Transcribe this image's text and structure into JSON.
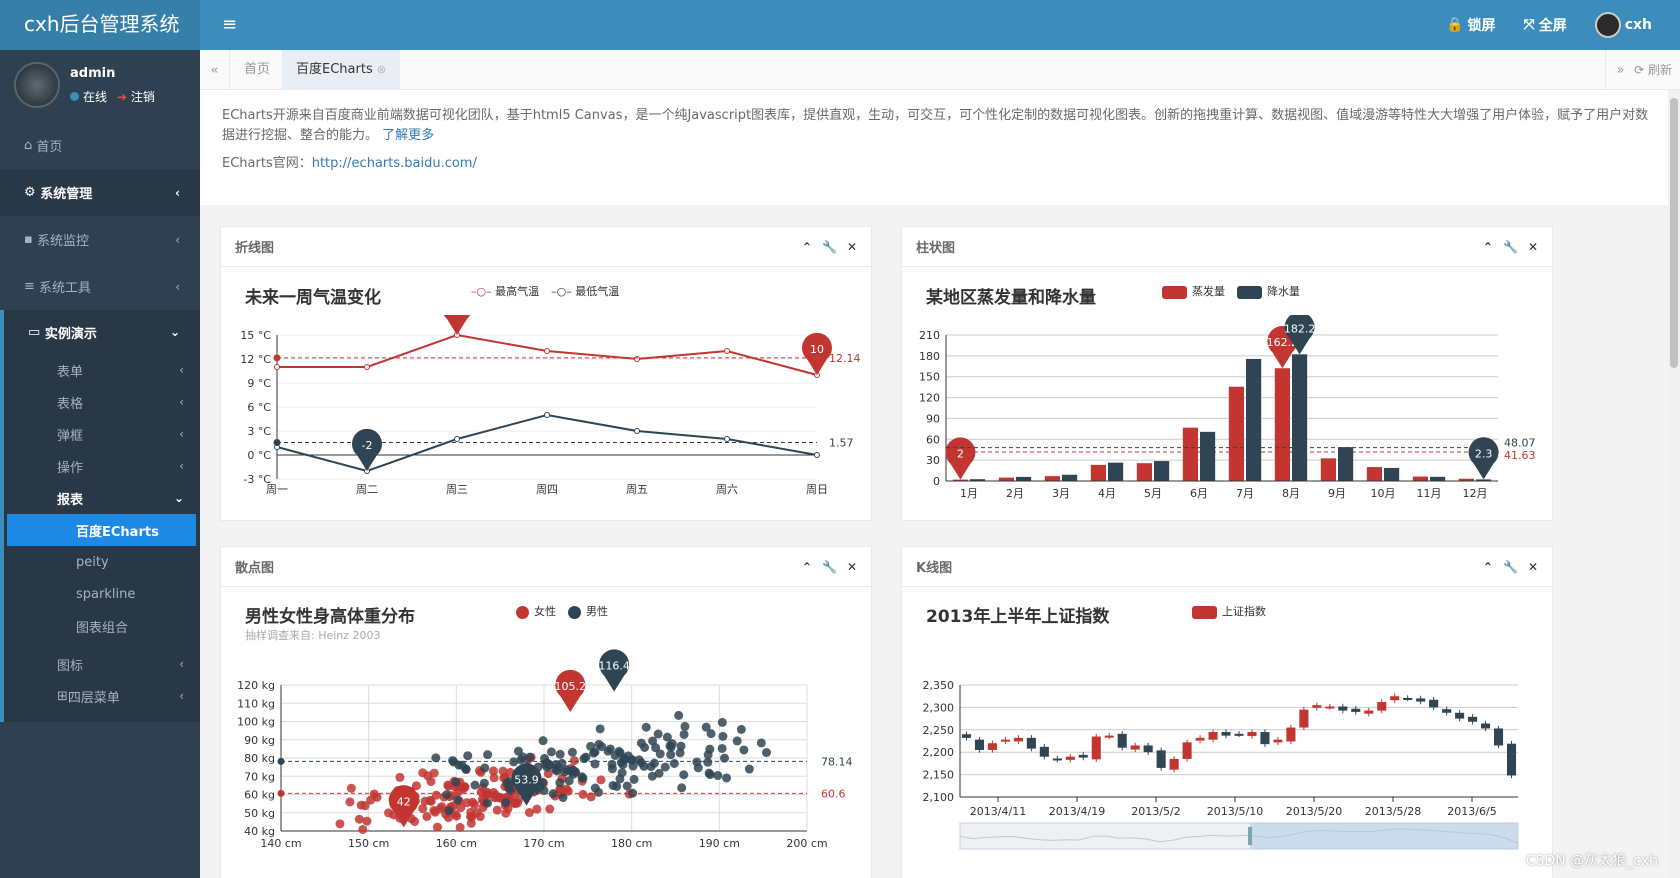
{
  "app": {
    "title": "cxh后台管理系统",
    "menu_toggle": "≡"
  },
  "topbar": {
    "lock": "锁屏",
    "fullscreen": "全屏",
    "user": "cxh"
  },
  "user": {
    "name": "admin",
    "online": "在线",
    "logout": "注销"
  },
  "sidebar": {
    "home": "首页",
    "system": "系统管理",
    "monitor": "系统监控",
    "tools": "系统工具",
    "demo": "实例演示",
    "demo_items": [
      "表单",
      "表格",
      "弹框",
      "操作"
    ],
    "report": "报表",
    "report_items": [
      "百度ECharts",
      "peity",
      "sparkline",
      "图表组合"
    ],
    "icons": "图标",
    "multi": "四层菜单"
  },
  "tabs": {
    "home": "首页",
    "echarts": "百度ECharts",
    "refresh": "刷新"
  },
  "intro": {
    "text": "ECharts开源来自百度商业前端数据可视化团队，基于html5 Canvas，是一个纯Javascript图表库，提供直观，生动，可交互，可个性化定制的数据可视化图表。创新的拖拽重计算、数据视图、值域漫游等特性大大增强了用户体验，赋予了用户对数据进行挖掘、整合的能力。",
    "more": "了解更多",
    "site_label": "ECharts官网：",
    "site_url": "http://echarts.baidu.com/"
  },
  "panels": {
    "line": "折线图",
    "bar": "柱状图",
    "scatter": "散点图",
    "kline": "K线图"
  },
  "colors": {
    "red": "#c23531",
    "dark": "#2f4554",
    "blue": "#1e88e5",
    "topbar": "#3c8dbc",
    "sidebar": "#2f4050"
  },
  "chart_data": [
    {
      "type": "line",
      "title": "未来一周气温变化",
      "categories": [
        "周一",
        "周二",
        "周三",
        "周四",
        "周五",
        "周六",
        "周日"
      ],
      "series": [
        {
          "name": "最高气温",
          "values": [
            11,
            11,
            15,
            13,
            12,
            13,
            10
          ],
          "max_label": "15",
          "min_label": "10",
          "avg": "12.14"
        },
        {
          "name": "最低气温",
          "values": [
            1,
            -2,
            2,
            5,
            3,
            2,
            0
          ],
          "min_label": "-2",
          "avg": "1.57"
        }
      ],
      "y_ticks": [
        "15 °C",
        "12 °C",
        "9 °C",
        "6 °C",
        "3 °C",
        "0 °C",
        "-3 °C"
      ],
      "ylim": [
        -3,
        15
      ]
    },
    {
      "type": "bar",
      "title": "某地区蒸发量和降水量",
      "categories": [
        "1月",
        "2月",
        "3月",
        "4月",
        "5月",
        "6月",
        "7月",
        "8月",
        "9月",
        "10月",
        "11月",
        "12月"
      ],
      "series": [
        {
          "name": "蒸发量",
          "values": [
            2,
            4.9,
            7,
            23.2,
            25.6,
            76.7,
            135.6,
            162.2,
            32.6,
            20,
            6.4,
            3.3
          ],
          "max_label": "162.2",
          "min_label": "2",
          "avg": "41.63"
        },
        {
          "name": "降水量",
          "values": [
            2.6,
            5.9,
            9,
            26.4,
            28.7,
            70.7,
            175.6,
            182.2,
            48.7,
            18.8,
            6,
            2.3
          ],
          "max_label": "182.2",
          "min_label": "2.3",
          "avg": "48.07"
        }
      ],
      "y_ticks": [
        "210",
        "180",
        "150",
        "120",
        "90",
        "60",
        "30",
        "0"
      ],
      "ylim": [
        0,
        210
      ]
    },
    {
      "type": "scatter",
      "title": "男性女性身高体重分布",
      "subtitle": "抽样调查来自: Heinz  2003",
      "series": [
        {
          "name": "女性",
          "max_label": "105.2",
          "min_label": "42",
          "avg": "60.6"
        },
        {
          "name": "男性",
          "max_label": "116.4",
          "min_label": "53.9",
          "avg": "78.14"
        }
      ],
      "x_ticks": [
        "140 cm",
        "150 cm",
        "160 cm",
        "170 cm",
        "180 cm",
        "190 cm",
        "200 cm"
      ],
      "y_ticks": [
        "120 kg",
        "110 kg",
        "100 kg",
        "90 kg",
        "80 kg",
        "70 kg",
        "60 kg",
        "50 kg",
        "40 kg"
      ],
      "xlim": [
        140,
        200
      ],
      "ylim": [
        40,
        120
      ]
    },
    {
      "type": "candlestick",
      "title": "2013年上半年上证指数",
      "series": [
        {
          "name": "上证指数"
        }
      ],
      "x_ticks": [
        "2013/4/11",
        "2013/4/19",
        "2013/5/2",
        "2013/5/10",
        "2013/5/20",
        "2013/5/28",
        "2013/6/5"
      ],
      "y_ticks": [
        "2,350",
        "2,300",
        "2,250",
        "2,200",
        "2,150",
        "2,100"
      ],
      "ylim": [
        2100,
        2350
      ]
    }
  ],
  "watermark": "CSDN @灰太狼_cxh"
}
